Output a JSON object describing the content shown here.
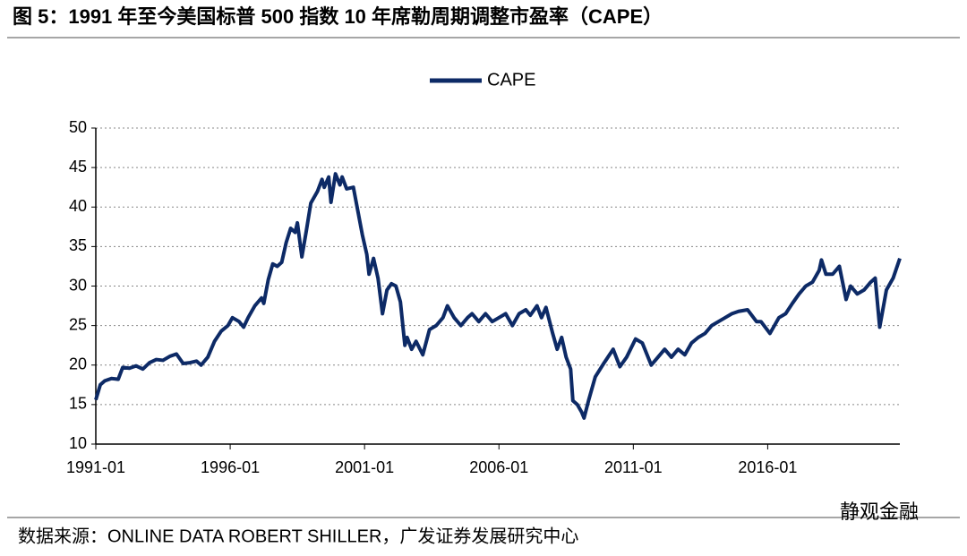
{
  "chart_data": {
    "type": "line",
    "title": "图 5：1991 年至今美国标普 500 指数 10 年席勒周期调整市盈率（CAPE）",
    "source": "数据来源：ONLINE DATA ROBERT SHILLER，广发证券发展研究中心",
    "watermark": "静观金融",
    "x": [
      "1991-01",
      "1991-03",
      "1991-05",
      "1991-08",
      "1991-11",
      "1992-01",
      "1992-04",
      "1992-07",
      "1992-10",
      "1993-01",
      "1993-04",
      "1993-07",
      "1993-10",
      "1994-01",
      "1994-04",
      "1994-07",
      "1994-10",
      "1994-12",
      "1995-03",
      "1995-06",
      "1995-09",
      "1995-12",
      "1996-02",
      "1996-05",
      "1996-07",
      "1996-09",
      "1996-12",
      "1997-03",
      "1997-04",
      "1997-06",
      "1997-08",
      "1997-10",
      "1997-12",
      "1998-02",
      "1998-04",
      "1998-06",
      "1998-07",
      "1998-09",
      "1998-11",
      "1999-01",
      "1999-04",
      "1999-06",
      "1999-07",
      "1999-09",
      "1999-10",
      "1999-12",
      "2000-01",
      "2000-02",
      "2000-03",
      "2000-05",
      "2000-08",
      "2000-10",
      "2000-12",
      "2001-02",
      "2001-03",
      "2001-05",
      "2001-07",
      "2001-09",
      "2001-11",
      "2002-01",
      "2002-03",
      "2002-05",
      "2002-07",
      "2002-08",
      "2002-10",
      "2002-12",
      "2003-03",
      "2003-06",
      "2003-09",
      "2003-12",
      "2004-02",
      "2004-05",
      "2004-08",
      "2004-11",
      "2005-01",
      "2005-04",
      "2005-07",
      "2005-10",
      "2006-01",
      "2006-04",
      "2006-07",
      "2006-10",
      "2007-01",
      "2007-03",
      "2007-06",
      "2007-08",
      "2007-10",
      "2008-01",
      "2008-03",
      "2008-05",
      "2008-07",
      "2008-09",
      "2008-10",
      "2008-12",
      "2009-02",
      "2009-03",
      "2009-05",
      "2009-08",
      "2009-12",
      "2010-04",
      "2010-07",
      "2010-10",
      "2011-02",
      "2011-05",
      "2011-09",
      "2011-12",
      "2012-03",
      "2012-06",
      "2012-09",
      "2012-12",
      "2013-03",
      "2013-06",
      "2013-09",
      "2013-12",
      "2014-03",
      "2014-06",
      "2014-09",
      "2014-12",
      "2015-04",
      "2015-08",
      "2015-10",
      "2016-02",
      "2016-06",
      "2016-09",
      "2016-12",
      "2017-03",
      "2017-06",
      "2017-09",
      "2017-12",
      "2018-01",
      "2018-03",
      "2018-06",
      "2018-09",
      "2018-12",
      "2019-02",
      "2019-05",
      "2019-08",
      "2019-11",
      "2020-01",
      "2020-03",
      "2020-06",
      "2020-09",
      "2020-12"
    ],
    "series": [
      {
        "name": "CAPE",
        "color": "#0d2a66",
        "values": [
          15.6,
          17.5,
          18.0,
          18.3,
          18.2,
          19.7,
          19.6,
          19.9,
          19.5,
          20.3,
          20.7,
          20.6,
          21.1,
          21.4,
          20.2,
          20.3,
          20.5,
          20.0,
          21.0,
          23.0,
          24.3,
          25.0,
          26.0,
          25.5,
          24.8,
          26.0,
          27.5,
          28.5,
          27.8,
          30.8,
          32.8,
          32.5,
          33.0,
          35.5,
          37.3,
          36.8,
          38.0,
          33.7,
          37.0,
          40.5,
          42.0,
          43.5,
          42.5,
          43.8,
          40.6,
          44.2,
          43.5,
          42.8,
          43.8,
          42.3,
          42.5,
          39.5,
          36.5,
          34.0,
          31.5,
          33.5,
          31.0,
          26.5,
          29.5,
          30.3,
          30.0,
          28.0,
          22.5,
          23.5,
          22.0,
          23.0,
          21.3,
          24.5,
          25.0,
          26.0,
          27.5,
          26.0,
          25.0,
          26.0,
          26.5,
          25.5,
          26.5,
          25.5,
          26.0,
          26.5,
          25.0,
          26.5,
          27.0,
          26.3,
          27.5,
          26.0,
          27.3,
          24.0,
          22.0,
          23.5,
          21.0,
          19.5,
          15.5,
          15.0,
          14.0,
          13.3,
          15.5,
          18.5,
          20.3,
          22.0,
          19.8,
          21.0,
          23.3,
          22.8,
          20.0,
          21.0,
          22.0,
          21.0,
          22.0,
          21.3,
          22.8,
          23.5,
          24.0,
          25.0,
          25.5,
          26.0,
          26.5,
          26.8,
          27.0,
          25.5,
          25.5,
          24.0,
          26.0,
          26.5,
          27.8,
          29.0,
          30.0,
          30.5,
          32.0,
          33.3,
          31.5,
          31.5,
          32.5,
          28.3,
          30.0,
          29.0,
          29.5,
          30.5,
          31.0,
          24.8,
          29.5,
          31.0,
          33.5
        ]
      }
    ],
    "xlim": [
      "1991-01",
      "2020-12"
    ],
    "xticks": [
      "1991-01",
      "1996-01",
      "2001-01",
      "2006-01",
      "2011-01",
      "2016-01"
    ],
    "ylim": [
      10,
      50
    ],
    "yticks": [
      10,
      15,
      20,
      25,
      30,
      35,
      40,
      45,
      50
    ],
    "grid": true
  }
}
